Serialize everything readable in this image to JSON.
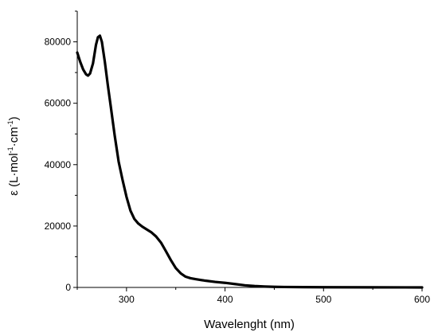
{
  "chart_data": {
    "type": "line",
    "title": "",
    "xlabel": "Wavelenght (nm)",
    "ylabel_parts": {
      "prefix": "ε (L·mol",
      "sup1": "-1",
      "mid": "·cm",
      "sup2": "-1",
      "suffix": ")"
    },
    "xlim": [
      250,
      600
    ],
    "ylim": [
      0,
      90000
    ],
    "x_major_ticks": [
      300,
      400,
      500,
      600
    ],
    "y_major_ticks": [
      0,
      20000,
      40000,
      60000,
      80000
    ],
    "x_tick_labels": [
      "300",
      "400",
      "500",
      "600"
    ],
    "y_tick_labels": [
      "0",
      "20000",
      "40000",
      "60000",
      "80000"
    ],
    "grid": false,
    "legend": "none",
    "line_color": "#000000",
    "series": [
      {
        "x": [
          250,
          253,
          256,
          259,
          261,
          263,
          266,
          269,
          271,
          273,
          275,
          278,
          281,
          284,
          288,
          292,
          296,
          300,
          304,
          308,
          312,
          316,
          320,
          325,
          330,
          335,
          340,
          345,
          350,
          355,
          360,
          365,
          370,
          380,
          390,
          400,
          410,
          420,
          430,
          440,
          450,
          460,
          480,
          500,
          550,
          600
        ],
        "y": [
          76500,
          73500,
          71000,
          69400,
          69000,
          69700,
          73000,
          79000,
          81500,
          82000,
          80000,
          73500,
          66000,
          59000,
          49500,
          41000,
          35000,
          29500,
          25000,
          22300,
          20800,
          19800,
          19000,
          18000,
          16600,
          14600,
          11800,
          8900,
          6300,
          4600,
          3500,
          3000,
          2700,
          2200,
          1800,
          1500,
          1100,
          700,
          450,
          300,
          200,
          150,
          100,
          70,
          30,
          0
        ]
      }
    ]
  }
}
